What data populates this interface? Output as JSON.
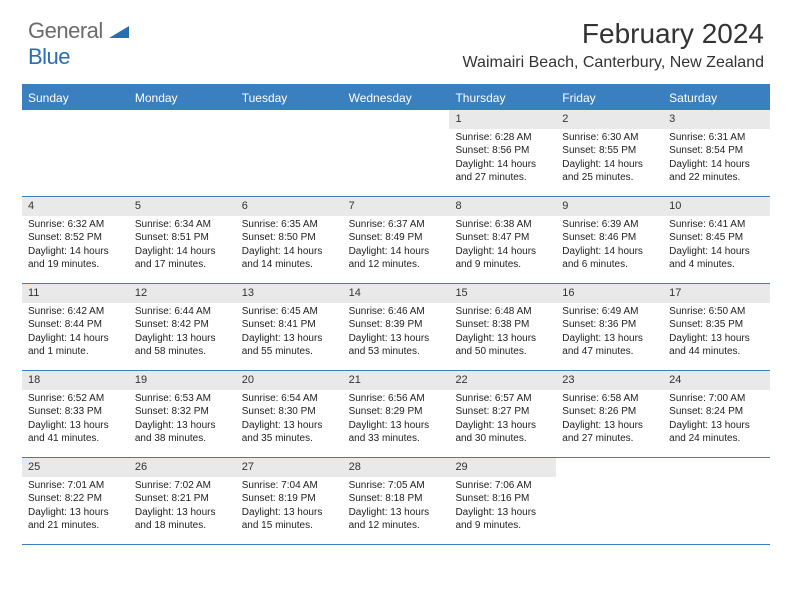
{
  "logo": {
    "word1": "General",
    "word2": "Blue"
  },
  "title": "February 2024",
  "location": "Waimairi Beach, Canterbury, New Zealand",
  "dayHeaders": [
    "Sunday",
    "Monday",
    "Tuesday",
    "Wednesday",
    "Thursday",
    "Friday",
    "Saturday"
  ],
  "colors": {
    "accent": "#3a7fc0",
    "dayNumBg": "#e9e9e9",
    "logoGray": "#6b6b6b",
    "logoBlue": "#2a6db3",
    "text": "#222222",
    "background": "#ffffff"
  },
  "fonts": {
    "title_pt": 28,
    "location_pt": 16,
    "dayHeader_pt": 12,
    "dayNum_pt": 11,
    "body_pt": 10
  },
  "weeks": [
    [
      {
        "n": "",
        "sr": "",
        "ss": "",
        "dl1": "",
        "dl2": ""
      },
      {
        "n": "",
        "sr": "",
        "ss": "",
        "dl1": "",
        "dl2": ""
      },
      {
        "n": "",
        "sr": "",
        "ss": "",
        "dl1": "",
        "dl2": ""
      },
      {
        "n": "",
        "sr": "",
        "ss": "",
        "dl1": "",
        "dl2": ""
      },
      {
        "n": "1",
        "sr": "Sunrise: 6:28 AM",
        "ss": "Sunset: 8:56 PM",
        "dl1": "Daylight: 14 hours",
        "dl2": "and 27 minutes."
      },
      {
        "n": "2",
        "sr": "Sunrise: 6:30 AM",
        "ss": "Sunset: 8:55 PM",
        "dl1": "Daylight: 14 hours",
        "dl2": "and 25 minutes."
      },
      {
        "n": "3",
        "sr": "Sunrise: 6:31 AM",
        "ss": "Sunset: 8:54 PM",
        "dl1": "Daylight: 14 hours",
        "dl2": "and 22 minutes."
      }
    ],
    [
      {
        "n": "4",
        "sr": "Sunrise: 6:32 AM",
        "ss": "Sunset: 8:52 PM",
        "dl1": "Daylight: 14 hours",
        "dl2": "and 19 minutes."
      },
      {
        "n": "5",
        "sr": "Sunrise: 6:34 AM",
        "ss": "Sunset: 8:51 PM",
        "dl1": "Daylight: 14 hours",
        "dl2": "and 17 minutes."
      },
      {
        "n": "6",
        "sr": "Sunrise: 6:35 AM",
        "ss": "Sunset: 8:50 PM",
        "dl1": "Daylight: 14 hours",
        "dl2": "and 14 minutes."
      },
      {
        "n": "7",
        "sr": "Sunrise: 6:37 AM",
        "ss": "Sunset: 8:49 PM",
        "dl1": "Daylight: 14 hours",
        "dl2": "and 12 minutes."
      },
      {
        "n": "8",
        "sr": "Sunrise: 6:38 AM",
        "ss": "Sunset: 8:47 PM",
        "dl1": "Daylight: 14 hours",
        "dl2": "and 9 minutes."
      },
      {
        "n": "9",
        "sr": "Sunrise: 6:39 AM",
        "ss": "Sunset: 8:46 PM",
        "dl1": "Daylight: 14 hours",
        "dl2": "and 6 minutes."
      },
      {
        "n": "10",
        "sr": "Sunrise: 6:41 AM",
        "ss": "Sunset: 8:45 PM",
        "dl1": "Daylight: 14 hours",
        "dl2": "and 4 minutes."
      }
    ],
    [
      {
        "n": "11",
        "sr": "Sunrise: 6:42 AM",
        "ss": "Sunset: 8:44 PM",
        "dl1": "Daylight: 14 hours",
        "dl2": "and 1 minute."
      },
      {
        "n": "12",
        "sr": "Sunrise: 6:44 AM",
        "ss": "Sunset: 8:42 PM",
        "dl1": "Daylight: 13 hours",
        "dl2": "and 58 minutes."
      },
      {
        "n": "13",
        "sr": "Sunrise: 6:45 AM",
        "ss": "Sunset: 8:41 PM",
        "dl1": "Daylight: 13 hours",
        "dl2": "and 55 minutes."
      },
      {
        "n": "14",
        "sr": "Sunrise: 6:46 AM",
        "ss": "Sunset: 8:39 PM",
        "dl1": "Daylight: 13 hours",
        "dl2": "and 53 minutes."
      },
      {
        "n": "15",
        "sr": "Sunrise: 6:48 AM",
        "ss": "Sunset: 8:38 PM",
        "dl1": "Daylight: 13 hours",
        "dl2": "and 50 minutes."
      },
      {
        "n": "16",
        "sr": "Sunrise: 6:49 AM",
        "ss": "Sunset: 8:36 PM",
        "dl1": "Daylight: 13 hours",
        "dl2": "and 47 minutes."
      },
      {
        "n": "17",
        "sr": "Sunrise: 6:50 AM",
        "ss": "Sunset: 8:35 PM",
        "dl1": "Daylight: 13 hours",
        "dl2": "and 44 minutes."
      }
    ],
    [
      {
        "n": "18",
        "sr": "Sunrise: 6:52 AM",
        "ss": "Sunset: 8:33 PM",
        "dl1": "Daylight: 13 hours",
        "dl2": "and 41 minutes."
      },
      {
        "n": "19",
        "sr": "Sunrise: 6:53 AM",
        "ss": "Sunset: 8:32 PM",
        "dl1": "Daylight: 13 hours",
        "dl2": "and 38 minutes."
      },
      {
        "n": "20",
        "sr": "Sunrise: 6:54 AM",
        "ss": "Sunset: 8:30 PM",
        "dl1": "Daylight: 13 hours",
        "dl2": "and 35 minutes."
      },
      {
        "n": "21",
        "sr": "Sunrise: 6:56 AM",
        "ss": "Sunset: 8:29 PM",
        "dl1": "Daylight: 13 hours",
        "dl2": "and 33 minutes."
      },
      {
        "n": "22",
        "sr": "Sunrise: 6:57 AM",
        "ss": "Sunset: 8:27 PM",
        "dl1": "Daylight: 13 hours",
        "dl2": "and 30 minutes."
      },
      {
        "n": "23",
        "sr": "Sunrise: 6:58 AM",
        "ss": "Sunset: 8:26 PM",
        "dl1": "Daylight: 13 hours",
        "dl2": "and 27 minutes."
      },
      {
        "n": "24",
        "sr": "Sunrise: 7:00 AM",
        "ss": "Sunset: 8:24 PM",
        "dl1": "Daylight: 13 hours",
        "dl2": "and 24 minutes."
      }
    ],
    [
      {
        "n": "25",
        "sr": "Sunrise: 7:01 AM",
        "ss": "Sunset: 8:22 PM",
        "dl1": "Daylight: 13 hours",
        "dl2": "and 21 minutes."
      },
      {
        "n": "26",
        "sr": "Sunrise: 7:02 AM",
        "ss": "Sunset: 8:21 PM",
        "dl1": "Daylight: 13 hours",
        "dl2": "and 18 minutes."
      },
      {
        "n": "27",
        "sr": "Sunrise: 7:04 AM",
        "ss": "Sunset: 8:19 PM",
        "dl1": "Daylight: 13 hours",
        "dl2": "and 15 minutes."
      },
      {
        "n": "28",
        "sr": "Sunrise: 7:05 AM",
        "ss": "Sunset: 8:18 PM",
        "dl1": "Daylight: 13 hours",
        "dl2": "and 12 minutes."
      },
      {
        "n": "29",
        "sr": "Sunrise: 7:06 AM",
        "ss": "Sunset: 8:16 PM",
        "dl1": "Daylight: 13 hours",
        "dl2": "and 9 minutes."
      },
      {
        "n": "",
        "sr": "",
        "ss": "",
        "dl1": "",
        "dl2": ""
      },
      {
        "n": "",
        "sr": "",
        "ss": "",
        "dl1": "",
        "dl2": ""
      }
    ]
  ]
}
